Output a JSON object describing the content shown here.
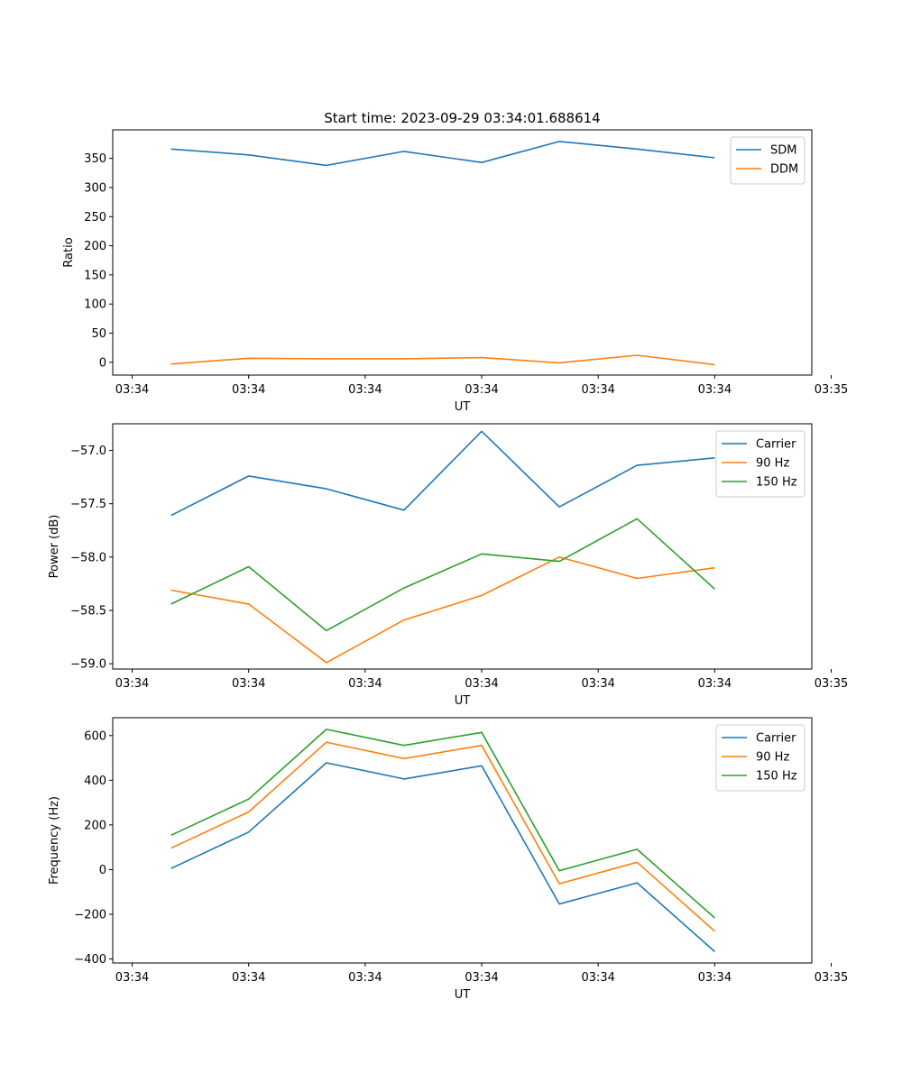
{
  "chart_data": [
    {
      "type": "line",
      "title": "Start time: 2023-09-29 03:34:01.688614",
      "xlabel": "UT",
      "ylabel": "Ratio",
      "x": [
        1,
        2,
        3,
        4,
        5,
        6,
        7,
        8
      ],
      "xlim": [
        0.25,
        9.25
      ],
      "xticks": [
        0.5,
        2,
        3.5,
        5,
        6.5,
        8,
        9.5
      ],
      "xtick_labels": [
        "03:34",
        "03:34",
        "03:34",
        "03:34",
        "03:34",
        "03:34",
        "03:35"
      ],
      "ylim": [
        -22,
        399
      ],
      "yticks": [
        0,
        50,
        100,
        150,
        200,
        250,
        300,
        350
      ],
      "ytick_labels": [
        "0",
        "50",
        "100",
        "150",
        "200",
        "250",
        "300",
        "350"
      ],
      "legend_position": "top-right",
      "series": [
        {
          "name": "SDM",
          "color": "#1f77b4",
          "values": [
            366,
            356,
            338,
            362,
            343,
            379,
            366,
            351
          ]
        },
        {
          "name": "DDM",
          "color": "#ff7f0e",
          "values": [
            -3,
            7,
            6,
            6,
            8,
            -1,
            12,
            -4
          ]
        }
      ]
    },
    {
      "type": "line",
      "title": "",
      "xlabel": "UT",
      "ylabel": "Power (dB)",
      "x": [
        1,
        2,
        3,
        4,
        5,
        6,
        7,
        8
      ],
      "xlim": [
        0.25,
        9.25
      ],
      "xticks": [
        0.5,
        2,
        3.5,
        5,
        6.5,
        8,
        9.5
      ],
      "xtick_labels": [
        "03:34",
        "03:34",
        "03:34",
        "03:34",
        "03:34",
        "03:34",
        "03:35"
      ],
      "ylim": [
        -59.05,
        -56.75
      ],
      "yticks": [
        -59.0,
        -58.5,
        -58.0,
        -57.5,
        -57.0
      ],
      "ytick_labels": [
        "−59.0",
        "−58.5",
        "−58.0",
        "−57.5",
        "−57.0"
      ],
      "legend_position": "top-right",
      "series": [
        {
          "name": "Carrier",
          "color": "#1f77b4",
          "values": [
            -57.61,
            -57.24,
            -57.36,
            -57.56,
            -56.82,
            -57.53,
            -57.14,
            -57.07
          ]
        },
        {
          "name": "90 Hz",
          "color": "#ff7f0e",
          "values": [
            -58.31,
            -58.44,
            -58.99,
            -58.59,
            -58.36,
            -58.0,
            -58.2,
            -58.1
          ]
        },
        {
          "name": "150 Hz",
          "color": "#2ca02c",
          "values": [
            -58.44,
            -58.09,
            -58.69,
            -58.29,
            -57.97,
            -58.04,
            -57.64,
            -58.3
          ]
        }
      ]
    },
    {
      "type": "line",
      "title": "",
      "xlabel": "UT",
      "ylabel": "Frequency (Hz)",
      "x": [
        1,
        2,
        3,
        4,
        5,
        6,
        7,
        8
      ],
      "xlim": [
        0.25,
        9.25
      ],
      "xticks": [
        0.5,
        2,
        3.5,
        5,
        6.5,
        8,
        9.5
      ],
      "xtick_labels": [
        "03:34",
        "03:34",
        "03:34",
        "03:34",
        "03:34",
        "03:34",
        "03:35"
      ],
      "ylim": [
        -418,
        680
      ],
      "yticks": [
        -400,
        -200,
        0,
        200,
        400,
        600
      ],
      "ytick_labels": [
        "−400",
        "−200",
        "0",
        "200",
        "400",
        "600"
      ],
      "legend_position": "top-right",
      "series": [
        {
          "name": "Carrier",
          "color": "#1f77b4",
          "values": [
            5,
            168,
            478,
            406,
            465,
            -154,
            -59,
            -367
          ]
        },
        {
          "name": "90 Hz",
          "color": "#ff7f0e",
          "values": [
            96,
            258,
            570,
            497,
            556,
            -63,
            33,
            -276
          ]
        },
        {
          "name": "150 Hz",
          "color": "#2ca02c",
          "values": [
            154,
            316,
            628,
            556,
            614,
            -5,
            91,
            -216
          ]
        }
      ]
    }
  ]
}
